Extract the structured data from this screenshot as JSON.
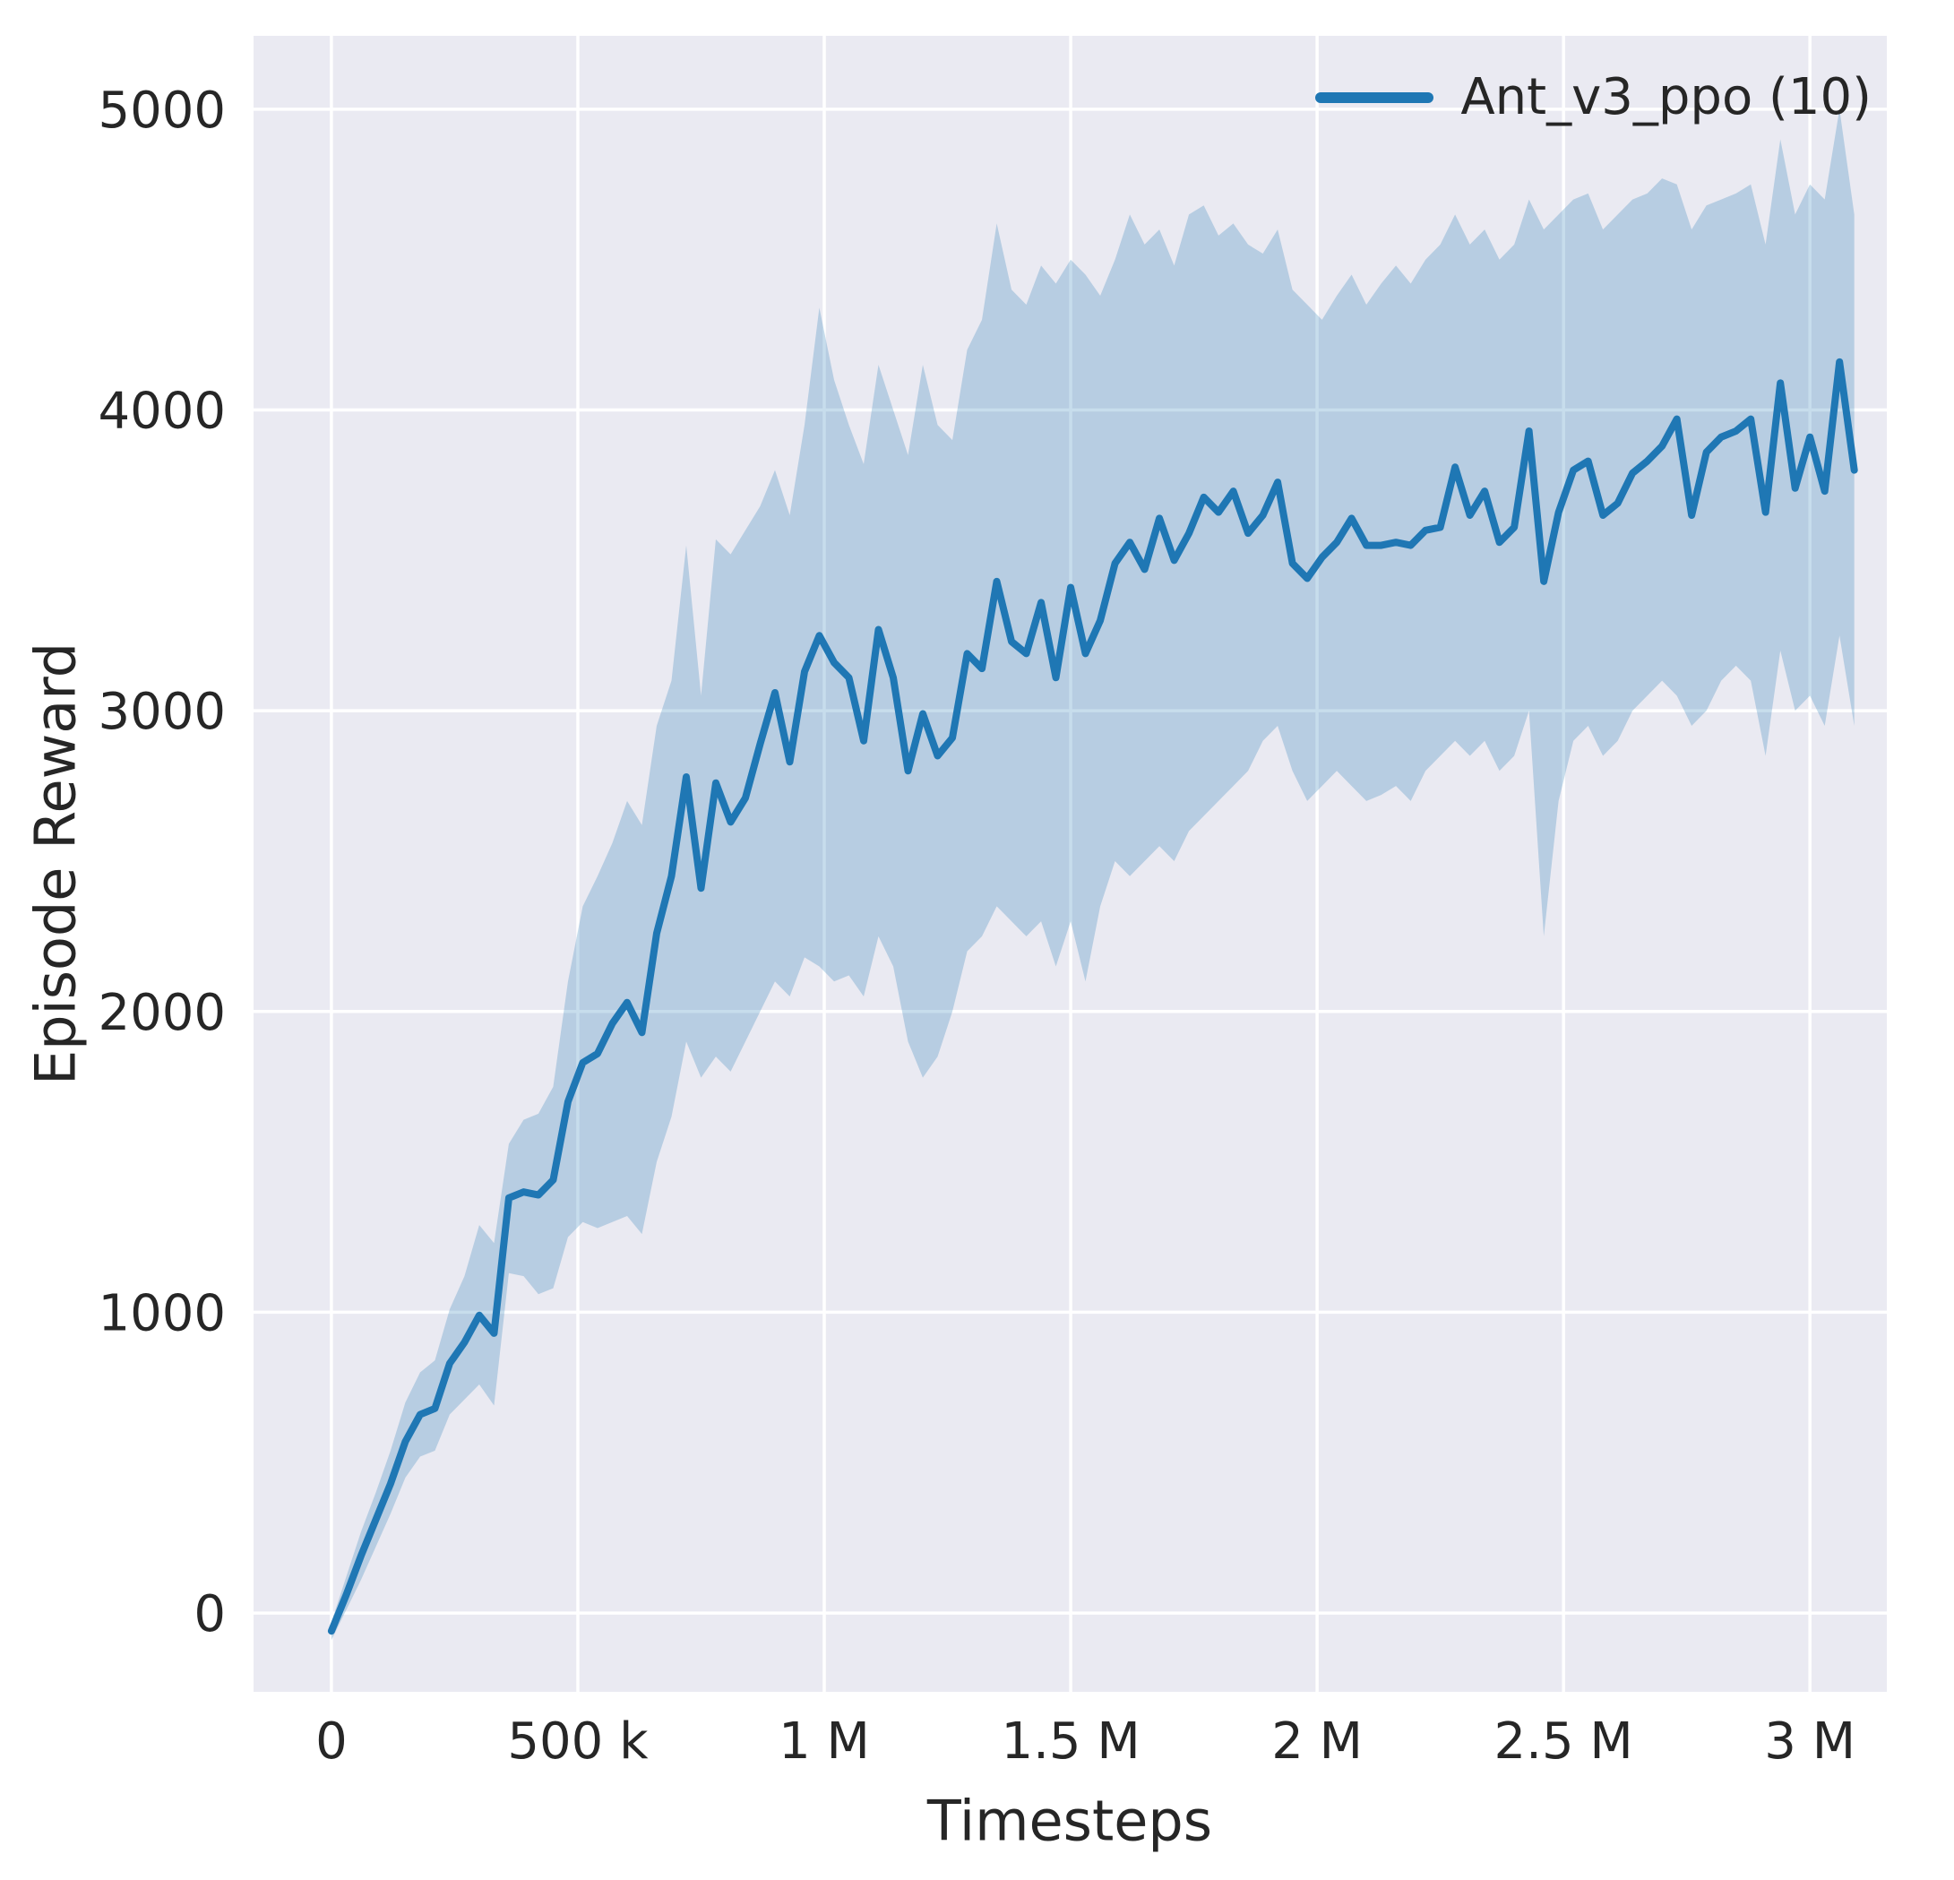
{
  "colors": {
    "figure_bg": "#ffffff",
    "plot_bg": "#eaeaf2",
    "grid": "#ffffff",
    "text": "#262626",
    "line": "#1f77b4",
    "band": "#1f77b4"
  },
  "chart_data": {
    "type": "line",
    "title": "",
    "xlabel": "Timesteps",
    "ylabel": "Episode Reward",
    "legend_label": "Ant_v3_ppo (10)",
    "legend_position": "upper right",
    "grid": true,
    "xlim": [
      -158000,
      3156000
    ],
    "ylim": [
      -262,
      5244
    ],
    "xticks": {
      "values": [
        0,
        500000,
        1000000,
        1500000,
        2000000,
        2500000,
        3000000
      ],
      "labels": [
        "0",
        "500 k",
        "1 M",
        "1.5 M",
        "2 M",
        "2.5 M",
        "3 M"
      ]
    },
    "yticks": {
      "values": [
        0,
        1000,
        2000,
        3000,
        4000,
        5000
      ],
      "labels": [
        "0",
        "1000",
        "2000",
        "3000",
        "4000",
        "5000"
      ]
    },
    "series": [
      {
        "name": "Ant_v3_ppo (10)",
        "color": "#1f77b4",
        "band_opacity": 0.25,
        "x": [
          0,
          30000,
          60000,
          90000,
          120000,
          150000,
          180000,
          210000,
          240000,
          270000,
          300000,
          330000,
          360000,
          390000,
          420000,
          450000,
          480000,
          510000,
          540000,
          570000,
          600000,
          630000,
          660000,
          690000,
          720000,
          750000,
          780000,
          810000,
          840000,
          870000,
          900000,
          930000,
          960000,
          990000,
          1020000,
          1050000,
          1080000,
          1110000,
          1140000,
          1170000,
          1200000,
          1230000,
          1260000,
          1290000,
          1320000,
          1350000,
          1380000,
          1410000,
          1440000,
          1470000,
          1500000,
          1530000,
          1560000,
          1590000,
          1620000,
          1650000,
          1680000,
          1710000,
          1740000,
          1770000,
          1800000,
          1830000,
          1860000,
          1890000,
          1920000,
          1950000,
          1980000,
          2010000,
          2040000,
          2070000,
          2100000,
          2130000,
          2160000,
          2190000,
          2220000,
          2250000,
          2280000,
          2310000,
          2340000,
          2370000,
          2400000,
          2430000,
          2460000,
          2490000,
          2520000,
          2550000,
          2580000,
          2610000,
          2640000,
          2670000,
          2700000,
          2730000,
          2760000,
          2790000,
          2820000,
          2850000,
          2880000,
          2910000,
          2940000,
          2970000,
          3000000,
          3030000,
          3060000,
          3090000
        ],
        "mean": [
          -60,
          60,
          190,
          310,
          430,
          570,
          660,
          680,
          830,
          900,
          990,
          930,
          1380,
          1400,
          1390,
          1440,
          1700,
          1830,
          1860,
          1960,
          2030,
          1930,
          2260,
          2450,
          2780,
          2410,
          2760,
          2630,
          2710,
          2890,
          3060,
          2830,
          3130,
          3250,
          3160,
          3110,
          2900,
          3270,
          3110,
          2800,
          2990,
          2850,
          2910,
          3190,
          3140,
          3430,
          3230,
          3190,
          3360,
          3110,
          3410,
          3190,
          3300,
          3490,
          3560,
          3470,
          3640,
          3500,
          3590,
          3710,
          3660,
          3730,
          3590,
          3650,
          3760,
          3490,
          3440,
          3510,
          3560,
          3640,
          3550,
          3550,
          3560,
          3550,
          3600,
          3610,
          3810,
          3650,
          3730,
          3560,
          3610,
          3930,
          3430,
          3660,
          3800,
          3830,
          3650,
          3690,
          3790,
          3830,
          3880,
          3970,
          3650,
          3860,
          3910,
          3930,
          3970,
          3660,
          4090,
          3740,
          3910,
          3730,
          4160,
          3800
        ],
        "lower": [
          -90,
          10,
          110,
          220,
          330,
          450,
          520,
          540,
          660,
          710,
          760,
          690,
          1130,
          1120,
          1060,
          1080,
          1250,
          1300,
          1280,
          1300,
          1320,
          1260,
          1500,
          1650,
          1900,
          1780,
          1850,
          1800,
          1900,
          2000,
          2100,
          2050,
          2180,
          2150,
          2100,
          2120,
          2050,
          2250,
          2150,
          1900,
          1780,
          1850,
          2000,
          2200,
          2250,
          2350,
          2300,
          2250,
          2300,
          2150,
          2300,
          2100,
          2350,
          2500,
          2450,
          2500,
          2550,
          2500,
          2600,
          2650,
          2700,
          2750,
          2800,
          2900,
          2950,
          2800,
          2700,
          2750,
          2800,
          2750,
          2700,
          2720,
          2750,
          2700,
          2800,
          2850,
          2900,
          2850,
          2900,
          2800,
          2850,
          3000,
          2250,
          2700,
          2900,
          2950,
          2850,
          2900,
          3000,
          3050,
          3100,
          3050,
          2950,
          3000,
          3100,
          3150,
          3100,
          2850,
          3200,
          3000,
          3050,
          2950,
          3250,
          2950
        ],
        "upper": [
          -30,
          120,
          270,
          400,
          540,
          700,
          800,
          840,
          1010,
          1120,
          1290,
          1230,
          1560,
          1640,
          1660,
          1750,
          2100,
          2350,
          2450,
          2560,
          2700,
          2620,
          2950,
          3100,
          3550,
          3050,
          3570,
          3520,
          3600,
          3680,
          3800,
          3650,
          3950,
          4340,
          4100,
          3950,
          3820,
          4150,
          4000,
          3850,
          4150,
          3950,
          3900,
          4200,
          4300,
          4620,
          4400,
          4350,
          4480,
          4420,
          4500,
          4450,
          4380,
          4500,
          4650,
          4550,
          4600,
          4480,
          4650,
          4680,
          4580,
          4620,
          4550,
          4520,
          4600,
          4400,
          4350,
          4300,
          4380,
          4450,
          4350,
          4420,
          4480,
          4420,
          4500,
          4550,
          4650,
          4550,
          4600,
          4500,
          4550,
          4700,
          4600,
          4650,
          4700,
          4720,
          4600,
          4650,
          4700,
          4720,
          4770,
          4750,
          4600,
          4680,
          4700,
          4720,
          4750,
          4550,
          4900,
          4650,
          4750,
          4700,
          5000,
          4650
        ]
      }
    ]
  }
}
